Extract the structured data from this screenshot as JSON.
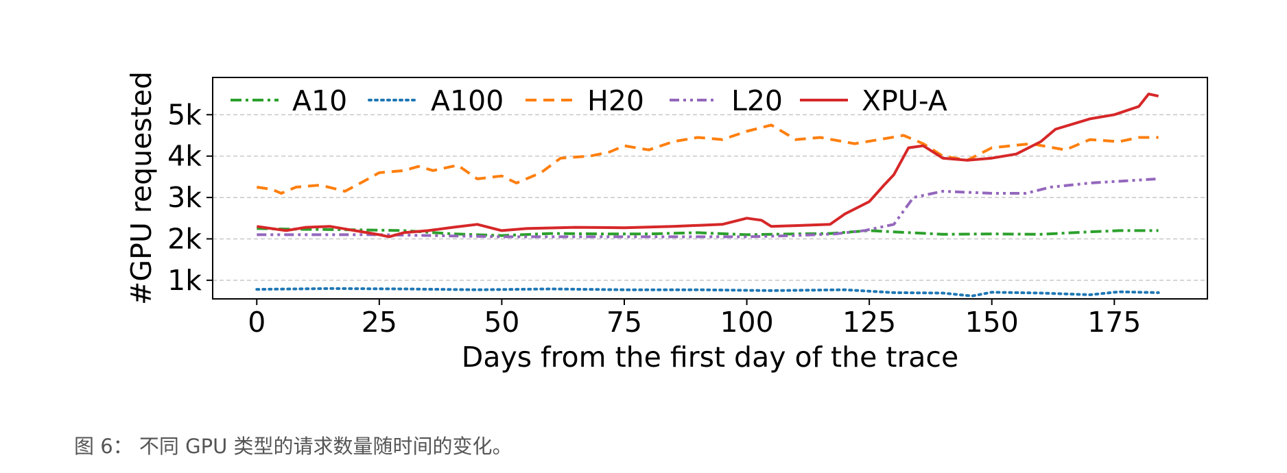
{
  "caption": "图 6： 不同 GPU 类型的请求数量随时间的变化。",
  "chart_data": {
    "type": "line",
    "title": "",
    "xlabel": "Days from the first day of the trace",
    "ylabel": "#GPU requested",
    "xlim": [
      -9,
      194
    ],
    "ylim": [
      550,
      5900
    ],
    "x_ticks": [
      0,
      25,
      50,
      75,
      100,
      125,
      150,
      175
    ],
    "x_tick_labels": [
      "0",
      "25",
      "50",
      "75",
      "100",
      "125",
      "150",
      "175"
    ],
    "y_ticks": [
      1000,
      2000,
      3000,
      4000,
      5000
    ],
    "y_tick_labels": [
      "1k",
      "2k",
      "3k",
      "4k",
      "5k"
    ],
    "grid": "horizontal dashed",
    "legend_position": "top, single row",
    "series": [
      {
        "name": "A10",
        "color": "#2ca02c",
        "style": "dashdot",
        "points": [
          [
            0,
            2250
          ],
          [
            10,
            2230
          ],
          [
            20,
            2220
          ],
          [
            30,
            2200
          ],
          [
            40,
            2120
          ],
          [
            50,
            2080
          ],
          [
            60,
            2130
          ],
          [
            70,
            2120
          ],
          [
            80,
            2120
          ],
          [
            90,
            2150
          ],
          [
            100,
            2100
          ],
          [
            110,
            2120
          ],
          [
            117,
            2130
          ],
          [
            125,
            2200
          ],
          [
            130,
            2170
          ],
          [
            140,
            2110
          ],
          [
            150,
            2120
          ],
          [
            160,
            2110
          ],
          [
            170,
            2170
          ],
          [
            176,
            2200
          ],
          [
            184,
            2200
          ]
        ]
      },
      {
        "name": "A100",
        "color": "#1f77b4",
        "style": "dotted",
        "points": [
          [
            0,
            780
          ],
          [
            15,
            800
          ],
          [
            30,
            790
          ],
          [
            45,
            770
          ],
          [
            60,
            790
          ],
          [
            75,
            770
          ],
          [
            90,
            770
          ],
          [
            105,
            750
          ],
          [
            120,
            770
          ],
          [
            130,
            700
          ],
          [
            140,
            690
          ],
          [
            146,
            620
          ],
          [
            150,
            710
          ],
          [
            160,
            690
          ],
          [
            170,
            650
          ],
          [
            176,
            720
          ],
          [
            184,
            700
          ]
        ]
      },
      {
        "name": "H20",
        "color": "#ff7f0e",
        "style": "dashed",
        "points": [
          [
            0,
            3250
          ],
          [
            3,
            3200
          ],
          [
            5,
            3100
          ],
          [
            8,
            3250
          ],
          [
            13,
            3300
          ],
          [
            18,
            3150
          ],
          [
            22,
            3400
          ],
          [
            25,
            3600
          ],
          [
            30,
            3650
          ],
          [
            33,
            3750
          ],
          [
            36,
            3650
          ],
          [
            41,
            3780
          ],
          [
            45,
            3450
          ],
          [
            50,
            3520
          ],
          [
            53,
            3350
          ],
          [
            58,
            3600
          ],
          [
            62,
            3950
          ],
          [
            68,
            4000
          ],
          [
            72,
            4100
          ],
          [
            75,
            4250
          ],
          [
            80,
            4150
          ],
          [
            85,
            4350
          ],
          [
            90,
            4450
          ],
          [
            95,
            4400
          ],
          [
            100,
            4600
          ],
          [
            105,
            4750
          ],
          [
            110,
            4400
          ],
          [
            115,
            4450
          ],
          [
            122,
            4300
          ],
          [
            127,
            4400
          ],
          [
            132,
            4500
          ],
          [
            136,
            4300
          ],
          [
            140,
            4000
          ],
          [
            145,
            3900
          ],
          [
            150,
            4200
          ],
          [
            158,
            4300
          ],
          [
            165,
            4150
          ],
          [
            170,
            4400
          ],
          [
            176,
            4350
          ],
          [
            180,
            4450
          ],
          [
            184,
            4450
          ]
        ]
      },
      {
        "name": "L20",
        "color": "#9467bd",
        "style": "dashdotdot",
        "points": [
          [
            0,
            2100
          ],
          [
            25,
            2100
          ],
          [
            50,
            2050
          ],
          [
            75,
            2050
          ],
          [
            100,
            2050
          ],
          [
            110,
            2080
          ],
          [
            118,
            2120
          ],
          [
            124,
            2200
          ],
          [
            130,
            2350
          ],
          [
            134,
            3000
          ],
          [
            140,
            3150
          ],
          [
            150,
            3100
          ],
          [
            157,
            3100
          ],
          [
            162,
            3250
          ],
          [
            170,
            3350
          ],
          [
            184,
            3450
          ]
        ]
      },
      {
        "name": "XPU-A",
        "color": "#d62728",
        "style": "solid",
        "points": [
          [
            0,
            2300
          ],
          [
            3,
            2250
          ],
          [
            6,
            2200
          ],
          [
            10,
            2280
          ],
          [
            15,
            2300
          ],
          [
            20,
            2200
          ],
          [
            25,
            2100
          ],
          [
            27,
            2050
          ],
          [
            30,
            2150
          ],
          [
            35,
            2200
          ],
          [
            40,
            2280
          ],
          [
            45,
            2350
          ],
          [
            50,
            2200
          ],
          [
            55,
            2250
          ],
          [
            65,
            2280
          ],
          [
            75,
            2270
          ],
          [
            85,
            2300
          ],
          [
            95,
            2350
          ],
          [
            100,
            2500
          ],
          [
            103,
            2450
          ],
          [
            105,
            2300
          ],
          [
            110,
            2320
          ],
          [
            117,
            2350
          ],
          [
            120,
            2600
          ],
          [
            125,
            2900
          ],
          [
            128,
            3300
          ],
          [
            130,
            3550
          ],
          [
            133,
            4200
          ],
          [
            136,
            4250
          ],
          [
            140,
            3950
          ],
          [
            145,
            3900
          ],
          [
            150,
            3950
          ],
          [
            155,
            4050
          ],
          [
            160,
            4350
          ],
          [
            163,
            4650
          ],
          [
            170,
            4900
          ],
          [
            175,
            5000
          ],
          [
            180,
            5200
          ],
          [
            182,
            5500
          ],
          [
            184,
            5450
          ]
        ]
      }
    ]
  }
}
